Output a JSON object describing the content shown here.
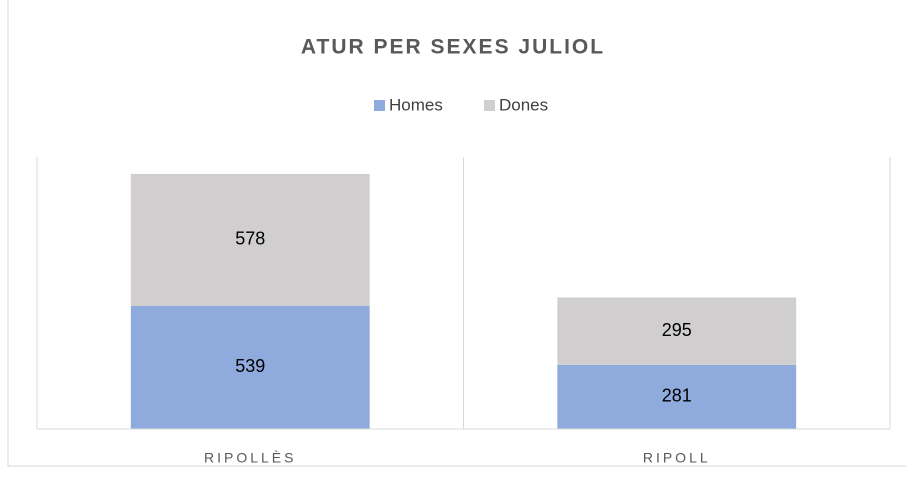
{
  "chart_data": {
    "type": "stacked_bar",
    "title": "ATUR PER SEXES JULIOL",
    "categories": [
      "RIPOLLÈS",
      "RIPOLL"
    ],
    "series": [
      {
        "name": "Homes",
        "color": "#8faadc",
        "values": [
          539,
          281
        ]
      },
      {
        "name": "Dones",
        "color": "#d0cece",
        "values": [
          578,
          295
        ]
      }
    ],
    "ylim": [
      0,
      1200
    ],
    "legend": "top"
  }
}
